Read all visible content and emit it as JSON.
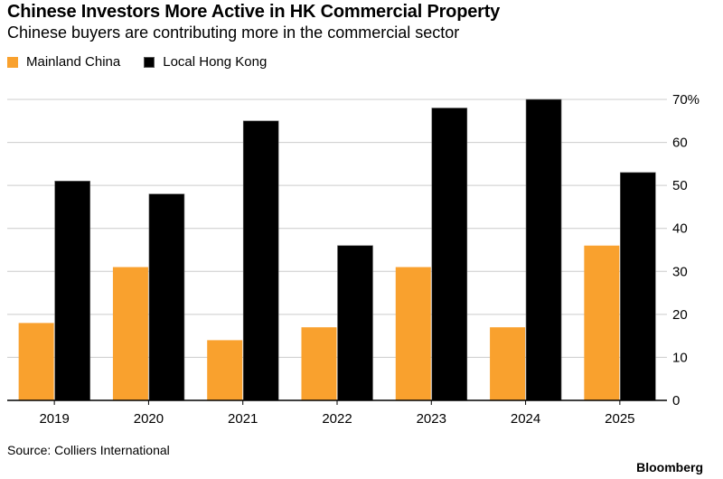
{
  "header": {
    "title": "Chinese Investors More Active in HK Commercial Property",
    "subtitle": "Chinese buyers are contributing more in the commercial sector"
  },
  "footer": {
    "source": "Source: Colliers International",
    "brand": "Bloomberg"
  },
  "colors": {
    "mainland": "#f9a12e",
    "local": "#000000",
    "grid": "#cccccc",
    "axis": "#000000"
  },
  "chart_data": {
    "type": "bar",
    "categories": [
      "2019",
      "2020",
      "2021",
      "2022",
      "2023",
      "2024",
      "2025"
    ],
    "series": [
      {
        "name": "Mainland China",
        "values": [
          18,
          31,
          14,
          17,
          31,
          17,
          36
        ]
      },
      {
        "name": "Local Hong Kong",
        "values": [
          51,
          48,
          65,
          36,
          68,
          70,
          53
        ]
      }
    ],
    "ylim": [
      0,
      70
    ],
    "y_ticks": [
      0,
      10,
      20,
      30,
      40,
      50,
      60,
      70
    ],
    "y_tick_labels": [
      "0",
      "10",
      "20",
      "30",
      "40",
      "50",
      "60",
      "70%"
    ],
    "y_axis_side": "right",
    "grid": true,
    "legend_position": "top-left"
  }
}
